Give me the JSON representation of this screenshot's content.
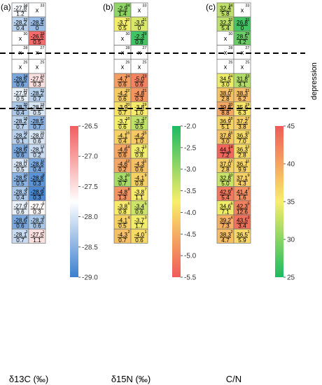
{
  "chart_data": [
    {
      "type": "heatmap",
      "panel_label": "(a)",
      "xlabel": "δ13C (‰)",
      "missing_label": "x",
      "colorbar": {
        "range": [
          -29.0,
          -26.5
        ],
        "ticks": [
          "-26.5",
          "-27.0",
          "-27.5",
          "-28.0",
          "-28.5",
          "-29.0"
        ],
        "tick_values": [
          -26.5,
          -27.0,
          -27.5,
          -28.0,
          -28.5,
          -29.0
        ],
        "colors": [
          "#3b7fce",
          "#ffffff",
          "#f25e5e"
        ]
      },
      "cells": [
        {
          "id": "34",
          "mean": "-27.8",
          "sd": "1.2",
          "v": -27.8
        },
        {
          "id": "33",
          "mean": null,
          "sd": null,
          "v": null
        },
        {
          "id": "32",
          "mean": "-28.2",
          "sd": "0.4",
          "v": -28.2
        },
        {
          "id": "31",
          "mean": "-28.4",
          "sd": "0",
          "v": -28.4
        },
        {
          "id": "30",
          "mean": null,
          "sd": null,
          "v": null
        },
        {
          "id": "29",
          "mean": "-26.6",
          "sd": "0.5",
          "v": -26.6
        },
        {
          "id": "28",
          "mean": null,
          "sd": null,
          "v": null
        },
        {
          "id": "27",
          "mean": null,
          "sd": null,
          "v": null
        },
        {
          "id": "26",
          "mean": null,
          "sd": null,
          "v": null
        },
        {
          "id": "25",
          "mean": null,
          "sd": null,
          "v": null
        },
        {
          "id": "24",
          "mean": "-28.6",
          "sd": "0.6",
          "v": -28.6
        },
        {
          "id": "23",
          "mean": "-27.5",
          "sd": "0.3",
          "v": -27.5
        },
        {
          "id": "22",
          "mean": "-27.9",
          "sd": "0.5",
          "v": -27.9
        },
        {
          "id": "21",
          "mean": "-28.2",
          "sd": "0.7",
          "v": -28.2
        },
        {
          "id": "20",
          "mean": "-28.3",
          "sd": "0.4",
          "v": -28.3
        },
        {
          "id": "19",
          "mean": "-28.0",
          "sd": "0.5",
          "v": -28.0
        },
        {
          "id": "18",
          "mean": "-28.2",
          "sd": "0.7",
          "v": -28.2
        },
        {
          "id": "17",
          "mean": "-28.5",
          "sd": "0.7",
          "v": -28.5
        },
        {
          "id": "16",
          "mean": "-28.2",
          "sd": "0.1",
          "v": -28.2
        },
        {
          "id": "15",
          "mean": "-28.0",
          "sd": "0.6",
          "v": -28.0
        },
        {
          "id": "14",
          "mean": "-28.6",
          "sd": "0.6",
          "v": -28.6
        },
        {
          "id": "13",
          "mean": "-28.1",
          "sd": "0.2",
          "v": -28.1
        },
        {
          "id": "12",
          "mean": "-28.0",
          "sd": "0.5",
          "v": -28.0
        },
        {
          "id": "11",
          "mean": "-28.6",
          "sd": "0.4",
          "v": -28.6
        },
        {
          "id": "10",
          "mean": "-28.5",
          "sd": "0.5",
          "v": -28.5
        },
        {
          "id": "9",
          "mean": "-28.8",
          "sd": "0.3",
          "v": -28.8
        },
        {
          "id": "8",
          "mean": "-28.3",
          "sd": "0.4",
          "v": -28.3
        },
        {
          "id": "7",
          "mean": "-28.9",
          "sd": "0.3",
          "v": -28.9
        },
        {
          "id": "6",
          "mean": "-27.9",
          "sd": "0.6",
          "v": -27.9
        },
        {
          "id": "5",
          "mean": "-27.7",
          "sd": "0.3",
          "v": -27.7
        },
        {
          "id": "4",
          "mean": "-28.6",
          "sd": "0.6",
          "v": -28.6
        },
        {
          "id": "3",
          "mean": "-28.3",
          "sd": "0.6",
          "v": -28.3
        },
        {
          "id": "2",
          "mean": "-28.1",
          "sd": "0.7",
          "v": -28.1
        },
        {
          "id": "1",
          "mean": "-27.5",
          "sd": "1.1",
          "v": -27.5
        }
      ]
    },
    {
      "type": "heatmap",
      "panel_label": "(b)",
      "xlabel": "δ15N (‰)",
      "missing_label": "x",
      "colorbar": {
        "range": [
          -5.5,
          -2.0
        ],
        "ticks": [
          "-2.0",
          "-2.5",
          "-3.0",
          "-3.5",
          "-4.0",
          "-4.5",
          "-5.0",
          "-5.5"
        ],
        "tick_values": [
          -2.0,
          -2.5,
          -3.0,
          -3.5,
          -4.0,
          -4.5,
          -5.0,
          -5.5
        ],
        "colors": [
          "#f05a5a",
          "#f8ee6a",
          "#1dba62"
        ]
      },
      "cells": [
        {
          "id": "34",
          "mean": "-2.9",
          "sd": "1.4",
          "v": -2.9
        },
        {
          "id": "33",
          "mean": null,
          "sd": null,
          "v": null
        },
        {
          "id": "32",
          "mean": "-3.7",
          "sd": "0.5",
          "v": -3.7
        },
        {
          "id": "31",
          "mean": "-3.5",
          "sd": "0",
          "v": -3.5
        },
        {
          "id": "30",
          "mean": null,
          "sd": null,
          "v": null
        },
        {
          "id": "29",
          "mean": "-2.3",
          "sd": "0.8",
          "v": -2.3
        },
        {
          "id": "28",
          "mean": null,
          "sd": null,
          "v": null
        },
        {
          "id": "27",
          "mean": null,
          "sd": null,
          "v": null
        },
        {
          "id": "26",
          "mean": null,
          "sd": null,
          "v": null
        },
        {
          "id": "25",
          "mean": null,
          "sd": null,
          "v": null
        },
        {
          "id": "24",
          "mean": "-4.7",
          "sd": "0.6",
          "v": -4.7
        },
        {
          "id": "23",
          "mean": "-5.0",
          "sd": "0.6",
          "v": -5.0
        },
        {
          "id": "22",
          "mean": "-4.2",
          "sd": "0.6",
          "v": -4.2
        },
        {
          "id": "21",
          "mean": "-4.8",
          "sd": "0.3",
          "v": -4.8
        },
        {
          "id": "20",
          "mean": "-3.9",
          "sd": "0.7",
          "v": -3.9
        },
        {
          "id": "19",
          "mean": "-3.8",
          "sd": "1.0",
          "v": -3.8
        },
        {
          "id": "18",
          "mean": "-3.7",
          "sd": "0.6",
          "v": -3.7
        },
        {
          "id": "17",
          "mean": "-3.3",
          "sd": "0.5",
          "v": -3.3
        },
        {
          "id": "16",
          "mean": "-4.1",
          "sd": "0.4",
          "v": -4.1
        },
        {
          "id": "15",
          "mean": "-4.2",
          "sd": "1.0",
          "v": -4.2
        },
        {
          "id": "14",
          "mean": "-4.6",
          "sd": "0.6",
          "v": -4.6
        },
        {
          "id": "13",
          "mean": "-3.7",
          "sd": "0.8",
          "v": -3.7
        },
        {
          "id": "12",
          "mean": "-4.6",
          "sd": "0.2",
          "v": -4.6
        },
        {
          "id": "11",
          "mean": "-4.3",
          "sd": "0.6",
          "v": -4.3
        },
        {
          "id": "10",
          "mean": "-3.1",
          "sd": "0.7",
          "v": -3.1
        },
        {
          "id": "9",
          "mean": "-4.1",
          "sd": "0.8",
          "v": -4.1
        },
        {
          "id": "8",
          "mean": "-4.8",
          "sd": "1.3",
          "v": -4.8
        },
        {
          "id": "7",
          "mean": "-3.8",
          "sd": "1.1",
          "v": -3.8
        },
        {
          "id": "6",
          "mean": "-3.8",
          "sd": "0.8",
          "v": -3.8
        },
        {
          "id": "5",
          "mean": "-3.4",
          "sd": "0.6",
          "v": -3.4
        },
        {
          "id": "4",
          "mean": "-4.1",
          "sd": "0.5",
          "v": -4.1
        },
        {
          "id": "3",
          "mean": "-3.7",
          "sd": "1.7",
          "v": -3.7
        },
        {
          "id": "2",
          "mean": "-4.3",
          "sd": "0.7",
          "v": -4.3
        },
        {
          "id": "1",
          "mean": "-4.0",
          "sd": "0.6",
          "v": -4.0
        }
      ]
    },
    {
      "type": "heatmap",
      "panel_label": "(c)",
      "xlabel": "C/N",
      "missing_label": "x",
      "colorbar": {
        "range": [
          25,
          45
        ],
        "ticks": [
          "45",
          "40",
          "35",
          "30",
          "25"
        ],
        "tick_values": [
          45,
          40,
          35,
          30,
          25
        ],
        "colors": [
          "#1dba62",
          "#f8ee6a",
          "#f05a5a"
        ]
      },
      "cells": [
        {
          "id": "34",
          "mean": "32.4",
          "sd": "5.8",
          "v": 32.4
        },
        {
          "id": "33",
          "mean": null,
          "sd": null,
          "v": null
        },
        {
          "id": "32",
          "mean": "32.3",
          "sd": "5.4",
          "v": 32.3
        },
        {
          "id": "31",
          "mean": "26.8",
          "sd": "0",
          "v": 26.8
        },
        {
          "id": "30",
          "mean": null,
          "sd": null,
          "v": null
        },
        {
          "id": "29",
          "mean": "28.5",
          "sd": "4.2",
          "v": 28.5
        },
        {
          "id": "28",
          "mean": null,
          "sd": null,
          "v": null
        },
        {
          "id": "27",
          "mean": null,
          "sd": null,
          "v": null
        },
        {
          "id": "26",
          "mean": null,
          "sd": null,
          "v": null
        },
        {
          "id": "25",
          "mean": null,
          "sd": null,
          "v": null
        },
        {
          "id": "24",
          "mean": "34.5",
          "sd": "3.0",
          "v": 34.5
        },
        {
          "id": "23",
          "mean": "31.8",
          "sd": "3.1",
          "v": 31.8
        },
        {
          "id": "22",
          "mean": "38.0",
          "sd": "2.8",
          "v": 38.0
        },
        {
          "id": "21",
          "mean": "38.3",
          "sd": "6.2",
          "v": 38.3
        },
        {
          "id": "20",
          "mean": "39.8",
          "sd": "8.8",
          "v": 39.8
        },
        {
          "id": "19",
          "mean": "35.6",
          "sd": "6.3",
          "v": 35.6
        },
        {
          "id": "18",
          "mean": "36.9",
          "sd": "5.1",
          "v": 36.9
        },
        {
          "id": "17",
          "mean": "37.2",
          "sd": "3.8",
          "v": 37.2
        },
        {
          "id": "16",
          "mean": "37.8",
          "sd": "3.0",
          "v": 37.8
        },
        {
          "id": "15",
          "mean": "36.3",
          "sd": "7.0",
          "v": 36.3
        },
        {
          "id": "14",
          "mean": "44.1",
          "sd": "7.2",
          "v": 44.1
        },
        {
          "id": "13",
          "mean": "36.3",
          "sd": "2.8",
          "v": 36.3
        },
        {
          "id": "12",
          "mean": "37.0",
          "sd": "2.8",
          "v": 37.0
        },
        {
          "id": "11",
          "mean": "36.7",
          "sd": "9.9",
          "v": 36.7
        },
        {
          "id": "10",
          "mean": "32.8",
          "sd": "5.0",
          "v": 32.8
        },
        {
          "id": "9",
          "mean": "37.1",
          "sd": "4.3",
          "v": 37.1
        },
        {
          "id": "8",
          "mean": "42.9",
          "sd": "5.4",
          "v": 42.9
        },
        {
          "id": "7",
          "mean": "41.4",
          "sd": "1.6",
          "v": 41.4
        },
        {
          "id": "6",
          "mean": "34.6",
          "sd": "7.1",
          "v": 34.6
        },
        {
          "id": "5",
          "mean": "42.3",
          "sd": "12.6",
          "v": 42.3
        },
        {
          "id": "4",
          "mean": "39.2",
          "sd": "7.3",
          "v": 39.2
        },
        {
          "id": "3",
          "mean": "43.5",
          "sd": "3.4",
          "v": 43.5
        },
        {
          "id": "2",
          "mean": "38.3",
          "sd": "4.7",
          "v": 38.3
        },
        {
          "id": "1",
          "mean": "36.5",
          "sd": "5.9",
          "v": 36.5
        }
      ]
    }
  ],
  "annotation": {
    "depression_label": "depression"
  }
}
